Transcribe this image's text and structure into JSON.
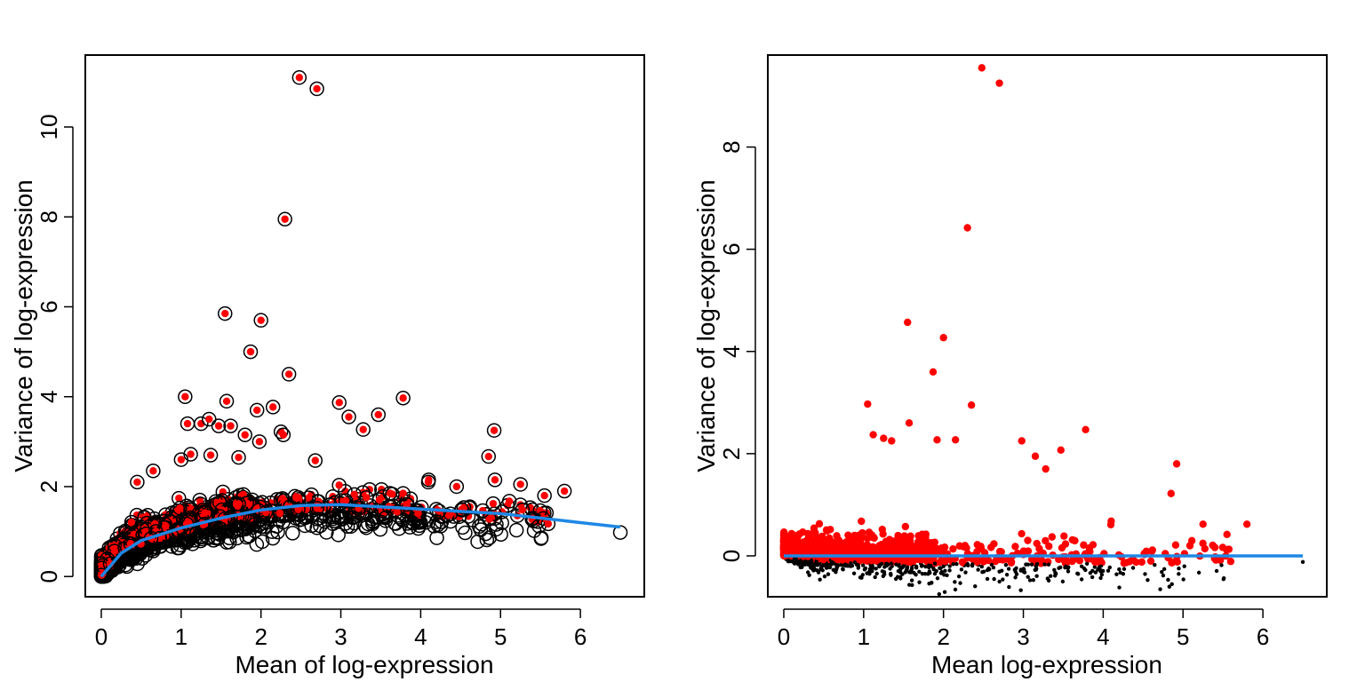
{
  "chart_data": [
    {
      "type": "scatter",
      "title": "",
      "xlabel": "Mean of log-expression",
      "ylabel": "Variance of log-expression",
      "xlim": [
        -0.2,
        6.8
      ],
      "ylim": [
        -0.45,
        11.6
      ],
      "xticks": [
        "0",
        "1",
        "2",
        "3",
        "4",
        "5",
        "6"
      ],
      "yticks": [
        "0",
        "2",
        "4",
        "6",
        "8",
        "10"
      ],
      "grid": false,
      "legend": "none",
      "colors": {
        "all_genes": "#000000",
        "highlighted": "#ff0000",
        "trend": "#1e88e5"
      },
      "trend": {
        "x": [
          0,
          0.25,
          0.5,
          1,
          1.5,
          2,
          2.5,
          3,
          3.5,
          4,
          4.5,
          5,
          5.5,
          6,
          6.5
        ],
        "y": [
          0,
          0.52,
          0.8,
          1.08,
          1.3,
          1.48,
          1.58,
          1.6,
          1.55,
          1.5,
          1.45,
          1.4,
          1.3,
          1.2,
          1.1
        ]
      },
      "outliers_highlighted": [
        {
          "x": 2.48,
          "y": 11.1
        },
        {
          "x": 2.7,
          "y": 10.85
        },
        {
          "x": 2.3,
          "y": 7.95
        },
        {
          "x": 1.55,
          "y": 5.85
        },
        {
          "x": 2.0,
          "y": 5.7
        },
        {
          "x": 1.87,
          "y": 5.0
        },
        {
          "x": 2.35,
          "y": 4.5
        },
        {
          "x": 1.05,
          "y": 4.0
        },
        {
          "x": 1.57,
          "y": 3.9
        },
        {
          "x": 3.78,
          "y": 3.97
        },
        {
          "x": 2.98,
          "y": 3.87
        },
        {
          "x": 1.95,
          "y": 3.7
        },
        {
          "x": 2.15,
          "y": 3.77
        },
        {
          "x": 3.47,
          "y": 3.6
        },
        {
          "x": 3.1,
          "y": 3.55
        },
        {
          "x": 1.08,
          "y": 3.4
        },
        {
          "x": 1.25,
          "y": 3.4
        },
        {
          "x": 1.35,
          "y": 3.5
        },
        {
          "x": 1.47,
          "y": 3.35
        },
        {
          "x": 1.62,
          "y": 3.35
        },
        {
          "x": 3.28,
          "y": 3.27
        },
        {
          "x": 2.25,
          "y": 3.22
        },
        {
          "x": 1.8,
          "y": 3.15
        },
        {
          "x": 2.28,
          "y": 3.15
        },
        {
          "x": 1.98,
          "y": 3.0
        },
        {
          "x": 4.92,
          "y": 3.25
        },
        {
          "x": 4.85,
          "y": 2.67
        },
        {
          "x": 1.12,
          "y": 2.72
        },
        {
          "x": 1.37,
          "y": 2.7
        },
        {
          "x": 1.72,
          "y": 2.65
        },
        {
          "x": 0.65,
          "y": 2.35
        },
        {
          "x": 1.0,
          "y": 2.6
        },
        {
          "x": 2.68,
          "y": 2.58
        },
        {
          "x": 0.45,
          "y": 2.1
        },
        {
          "x": 5.8,
          "y": 1.9
        },
        {
          "x": 5.55,
          "y": 1.8
        },
        {
          "x": 4.93,
          "y": 2.15
        },
        {
          "x": 5.25,
          "y": 2.05
        },
        {
          "x": 3.78,
          "y": 1.85
        },
        {
          "x": 4.1,
          "y": 2.15
        },
        {
          "x": 4.45,
          "y": 2.0
        }
      ],
      "cloud_points_approx": 4000
    },
    {
      "type": "scatter",
      "title": "",
      "xlabel": "Mean log-expression",
      "ylabel": "Variance of log-expression",
      "xlim": [
        -0.2,
        6.8
      ],
      "ylim": [
        -0.8,
        9.8
      ],
      "xticks": [
        "0",
        "1",
        "2",
        "3",
        "4",
        "5",
        "6"
      ],
      "yticks": [
        "0",
        "2",
        "4",
        "6",
        "8"
      ],
      "grid": false,
      "legend": "none",
      "colors": {
        "all_genes": "#000000",
        "highlighted": "#ff0000",
        "trend": "#1e88e5"
      },
      "trend": {
        "x": [
          0,
          6.5
        ],
        "y": [
          0,
          0
        ]
      },
      "outliers_highlighted": [
        {
          "x": 2.48,
          "y": 9.55
        },
        {
          "x": 2.7,
          "y": 9.25
        },
        {
          "x": 2.3,
          "y": 6.42
        },
        {
          "x": 1.55,
          "y": 4.57
        },
        {
          "x": 2.0,
          "y": 4.27
        },
        {
          "x": 1.87,
          "y": 3.6
        },
        {
          "x": 2.35,
          "y": 2.95
        },
        {
          "x": 1.05,
          "y": 2.97
        },
        {
          "x": 1.57,
          "y": 2.6
        },
        {
          "x": 3.78,
          "y": 2.47
        },
        {
          "x": 2.98,
          "y": 2.25
        },
        {
          "x": 3.15,
          "y": 1.95
        },
        {
          "x": 3.47,
          "y": 2.07
        },
        {
          "x": 3.28,
          "y": 1.7
        },
        {
          "x": 1.92,
          "y": 2.27
        },
        {
          "x": 2.15,
          "y": 2.27
        },
        {
          "x": 1.12,
          "y": 2.37
        },
        {
          "x": 1.25,
          "y": 2.3
        },
        {
          "x": 1.35,
          "y": 2.25
        },
        {
          "x": 4.92,
          "y": 1.8
        },
        {
          "x": 4.85,
          "y": 1.22
        },
        {
          "x": 5.8,
          "y": 0.62
        },
        {
          "x": 5.55,
          "y": 0.42
        },
        {
          "x": 5.25,
          "y": 0.62
        },
        {
          "x": 4.1,
          "y": 0.68
        }
      ],
      "cloud_points_approx": 4000
    }
  ]
}
